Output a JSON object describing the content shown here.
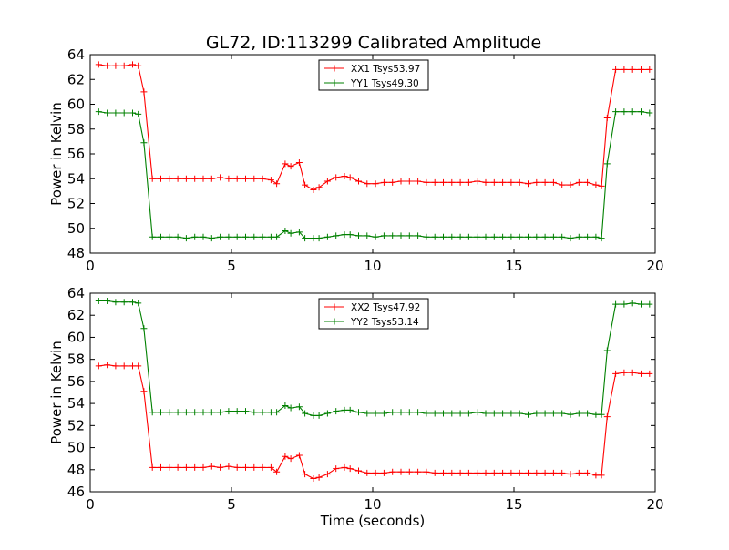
{
  "title": "GL72, ID:113299 Calibrated Amplitude",
  "chart_data": [
    {
      "type": "line",
      "ylabel": "Power in Kelvin",
      "xlabel": "",
      "xlim": [
        0,
        20
      ],
      "ylim": [
        48,
        64
      ],
      "xticks": [
        "0",
        "5",
        "10",
        "15",
        "20"
      ],
      "yticks": [
        "48",
        "50",
        "52",
        "54",
        "56",
        "58",
        "60",
        "62",
        "64"
      ],
      "legend_position": "top-center",
      "x": [
        0.3,
        0.6,
        0.9,
        1.2,
        1.5,
        1.7,
        1.9,
        2.2,
        2.5,
        2.8,
        3.1,
        3.4,
        3.7,
        4.0,
        4.3,
        4.6,
        4.9,
        5.2,
        5.5,
        5.8,
        6.1,
        6.4,
        6.6,
        6.9,
        7.1,
        7.4,
        7.6,
        7.9,
        8.1,
        8.4,
        8.7,
        9.0,
        9.2,
        9.5,
        9.8,
        10.1,
        10.4,
        10.7,
        11.0,
        11.3,
        11.6,
        11.9,
        12.2,
        12.5,
        12.8,
        13.1,
        13.4,
        13.7,
        14.0,
        14.3,
        14.6,
        14.9,
        15.2,
        15.5,
        15.8,
        16.1,
        16.4,
        16.7,
        17.0,
        17.3,
        17.6,
        17.9,
        18.1,
        18.3,
        18.6,
        18.9,
        19.2,
        19.5,
        19.8
      ],
      "series": [
        {
          "name": "XX1 Tsys53.97",
          "color": "#ff0000",
          "values": [
            63.2,
            63.1,
            63.1,
            63.1,
            63.2,
            63.1,
            61.0,
            54.0,
            54.0,
            54.0,
            54.0,
            54.0,
            54.0,
            54.0,
            54.0,
            54.1,
            54.0,
            54.0,
            54.0,
            54.0,
            54.0,
            53.9,
            53.6,
            55.2,
            55.0,
            55.3,
            53.5,
            53.1,
            53.3,
            53.8,
            54.1,
            54.2,
            54.1,
            53.8,
            53.6,
            53.6,
            53.7,
            53.7,
            53.8,
            53.8,
            53.8,
            53.7,
            53.7,
            53.7,
            53.7,
            53.7,
            53.7,
            53.8,
            53.7,
            53.7,
            53.7,
            53.7,
            53.7,
            53.6,
            53.7,
            53.7,
            53.7,
            53.5,
            53.5,
            53.7,
            53.7,
            53.5,
            53.4,
            58.9,
            62.8,
            62.8,
            62.8,
            62.8,
            62.8
          ]
        },
        {
          "name": "YY1 Tsys49.30",
          "color": "#008000",
          "values": [
            59.4,
            59.3,
            59.3,
            59.3,
            59.3,
            59.2,
            56.9,
            49.3,
            49.3,
            49.3,
            49.3,
            49.2,
            49.3,
            49.3,
            49.2,
            49.3,
            49.3,
            49.3,
            49.3,
            49.3,
            49.3,
            49.3,
            49.3,
            49.8,
            49.6,
            49.7,
            49.2,
            49.2,
            49.2,
            49.3,
            49.4,
            49.5,
            49.5,
            49.4,
            49.4,
            49.3,
            49.4,
            49.4,
            49.4,
            49.4,
            49.4,
            49.3,
            49.3,
            49.3,
            49.3,
            49.3,
            49.3,
            49.3,
            49.3,
            49.3,
            49.3,
            49.3,
            49.3,
            49.3,
            49.3,
            49.3,
            49.3,
            49.3,
            49.2,
            49.3,
            49.3,
            49.3,
            49.2,
            55.2,
            59.4,
            59.4,
            59.4,
            59.4,
            59.3
          ]
        }
      ]
    },
    {
      "type": "line",
      "ylabel": "Power in Kelvin",
      "xlabel": "Time (seconds)",
      "xlim": [
        0,
        20
      ],
      "ylim": [
        46,
        64
      ],
      "xticks": [
        "0",
        "5",
        "10",
        "15",
        "20"
      ],
      "yticks": [
        "46",
        "48",
        "50",
        "52",
        "54",
        "56",
        "58",
        "60",
        "62",
        "64"
      ],
      "legend_position": "top-center",
      "x": [
        0.3,
        0.6,
        0.9,
        1.2,
        1.5,
        1.7,
        1.9,
        2.2,
        2.5,
        2.8,
        3.1,
        3.4,
        3.7,
        4.0,
        4.3,
        4.6,
        4.9,
        5.2,
        5.5,
        5.8,
        6.1,
        6.4,
        6.6,
        6.9,
        7.1,
        7.4,
        7.6,
        7.9,
        8.1,
        8.4,
        8.7,
        9.0,
        9.2,
        9.5,
        9.8,
        10.1,
        10.4,
        10.7,
        11.0,
        11.3,
        11.6,
        11.9,
        12.2,
        12.5,
        12.8,
        13.1,
        13.4,
        13.7,
        14.0,
        14.3,
        14.6,
        14.9,
        15.2,
        15.5,
        15.8,
        16.1,
        16.4,
        16.7,
        17.0,
        17.3,
        17.6,
        17.9,
        18.1,
        18.3,
        18.6,
        18.9,
        19.2,
        19.5,
        19.8
      ],
      "series": [
        {
          "name": "XX2 Tsys47.92",
          "color": "#ff0000",
          "values": [
            57.4,
            57.5,
            57.4,
            57.4,
            57.4,
            57.4,
            55.1,
            48.2,
            48.2,
            48.2,
            48.2,
            48.2,
            48.2,
            48.2,
            48.3,
            48.2,
            48.3,
            48.2,
            48.2,
            48.2,
            48.2,
            48.2,
            47.8,
            49.2,
            49.0,
            49.3,
            47.6,
            47.2,
            47.3,
            47.6,
            48.1,
            48.2,
            48.1,
            47.9,
            47.7,
            47.7,
            47.7,
            47.8,
            47.8,
            47.8,
            47.8,
            47.8,
            47.7,
            47.7,
            47.7,
            47.7,
            47.7,
            47.7,
            47.7,
            47.7,
            47.7,
            47.7,
            47.7,
            47.7,
            47.7,
            47.7,
            47.7,
            47.7,
            47.6,
            47.7,
            47.7,
            47.5,
            47.5,
            52.8,
            56.7,
            56.8,
            56.8,
            56.7,
            56.7
          ]
        },
        {
          "name": "YY2 Tsys53.14",
          "color": "#008000",
          "values": [
            63.3,
            63.3,
            63.2,
            63.2,
            63.2,
            63.1,
            60.8,
            53.2,
            53.2,
            53.2,
            53.2,
            53.2,
            53.2,
            53.2,
            53.2,
            53.2,
            53.3,
            53.3,
            53.3,
            53.2,
            53.2,
            53.2,
            53.2,
            53.8,
            53.6,
            53.7,
            53.1,
            52.9,
            52.9,
            53.1,
            53.3,
            53.4,
            53.4,
            53.2,
            53.1,
            53.1,
            53.1,
            53.2,
            53.2,
            53.2,
            53.2,
            53.1,
            53.1,
            53.1,
            53.1,
            53.1,
            53.1,
            53.2,
            53.1,
            53.1,
            53.1,
            53.1,
            53.1,
            53.0,
            53.1,
            53.1,
            53.1,
            53.1,
            53.0,
            53.1,
            53.1,
            53.0,
            53.0,
            58.8,
            63.0,
            63.0,
            63.1,
            63.0,
            63.0
          ]
        }
      ]
    }
  ]
}
